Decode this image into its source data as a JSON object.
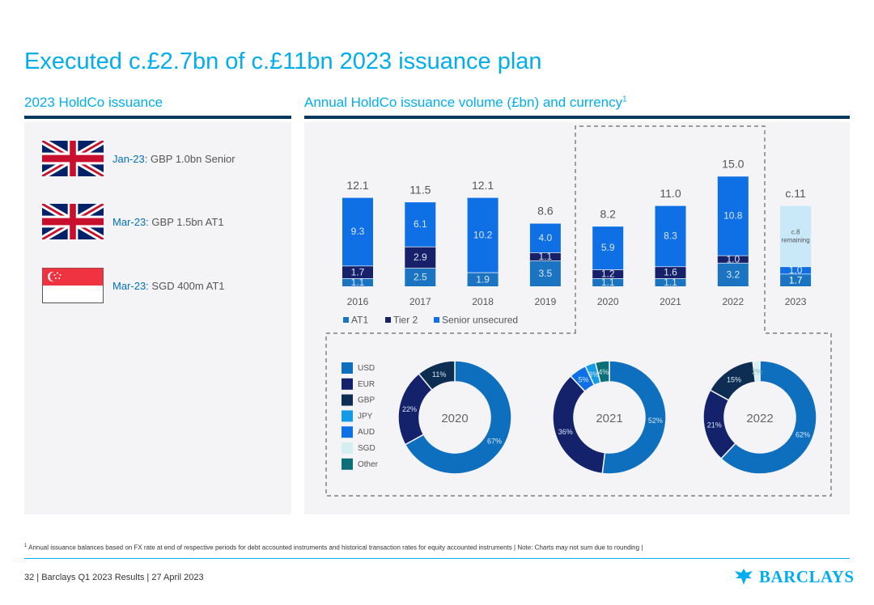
{
  "title": "Executed c.£2.7bn of c.£11bn 2023 issuance plan",
  "left_heading": "2023 HoldCo issuance",
  "right_heading": "Annual HoldCo issuance volume (£bn) and currency",
  "right_heading_sup": "1",
  "issuances": [
    {
      "flag": "uk-flag-icon",
      "date": "Jan-23:",
      "text": "GBP 1.0bn Senior"
    },
    {
      "flag": "uk-flag-icon",
      "date": "Mar-23:",
      "text": "GBP 1.5bn AT1"
    },
    {
      "flag": "singapore-flag-icon",
      "date": "Mar-23:",
      "text": "SGD 400m AT1"
    }
  ],
  "footnote_sup": "1",
  "footnote": "Annual issuance balances based on FX rate at end of respective periods for debt accounted instruments and historical transaction rates for equity accounted instruments | Note: Charts may not sum due to rounding |",
  "footer": "32 | Barclays Q1 2023 Results | 27 April 2023",
  "logo_text": "BARCLAYS",
  "colors": {
    "accent": "#00aeef",
    "navy": "#00395d",
    "at1": "#1a74c2",
    "tier2": "#16216a",
    "senior": "#0f70e6",
    "remaining": "#c9e8f8",
    "usd": "#0f6fbf",
    "eur": "#14216b",
    "gbp": "#0d2e52",
    "jpy": "#159be6",
    "aud": "#0f70e6",
    "sgd": "#d5eef0",
    "other": "#0c6f77"
  },
  "chart_data": [
    {
      "type": "bar",
      "stacked": true,
      "categories": [
        "2016",
        "2017",
        "2018",
        "2019",
        "2020",
        "2021",
        "2022",
        "2023"
      ],
      "series": [
        {
          "name": "AT1",
          "values": [
            1.1,
            2.5,
            1.9,
            3.5,
            1.1,
            1.1,
            3.2,
            1.7
          ]
        },
        {
          "name": "Tier 2",
          "values": [
            1.7,
            2.9,
            null,
            1.1,
            1.2,
            1.6,
            1.0,
            null
          ]
        },
        {
          "name": "Senior unsecured",
          "values": [
            9.3,
            6.1,
            10.2,
            4.0,
            5.9,
            8.3,
            10.8,
            1.0
          ]
        },
        {
          "name": "",
          "values": [
            null,
            null,
            null,
            null,
            null,
            null,
            null,
            8.3
          ]
        }
      ],
      "segment_labels": [
        [
          "1.1",
          "1.7",
          "9.3",
          null
        ],
        [
          "2.5",
          "2.9",
          "6.1",
          null
        ],
        [
          "1.9",
          null,
          "10.2",
          null
        ],
        [
          "3.5",
          "1.1",
          "4.0",
          null
        ],
        [
          "1.1",
          "1.2",
          "5.9",
          null
        ],
        [
          "1.1",
          "1.6",
          "8.3",
          null
        ],
        [
          "3.2",
          "1.0",
          "10.8",
          null
        ],
        [
          "1.7",
          null,
          "1.0",
          "c.8 remaining"
        ]
      ],
      "totals": [
        "12.1",
        "11.5",
        "12.1",
        "8.6",
        "8.2",
        "11.0",
        "15.0",
        "c.11"
      ],
      "legend": [
        "AT1",
        "Tier 2",
        "Senior unsecured"
      ],
      "grid": false
    },
    {
      "type": "pie",
      "donut": true,
      "legend": [
        "USD",
        "EUR",
        "GBP",
        "JPY",
        "AUD",
        "SGD",
        "Other"
      ],
      "charts": [
        {
          "center_label": "2020",
          "slices": [
            {
              "name": "USD",
              "value": 67,
              "label": "67%"
            },
            {
              "name": "EUR",
              "value": 22,
              "label": "22%"
            },
            {
              "name": "GBP",
              "value": 11,
              "label": "11%"
            }
          ]
        },
        {
          "center_label": "2021",
          "slices": [
            {
              "name": "USD",
              "value": 52,
              "label": "52%"
            },
            {
              "name": "EUR",
              "value": 36,
              "label": "36%"
            },
            {
              "name": "AUD",
              "value": 5,
              "label": "5%"
            },
            {
              "name": "JPY",
              "value": 3,
              "label": "3%"
            },
            {
              "name": "Other",
              "value": 4,
              "label": "4%"
            }
          ]
        },
        {
          "center_label": "2022",
          "slices": [
            {
              "name": "USD",
              "value": 62,
              "label": "62%"
            },
            {
              "name": "EUR",
              "value": 21,
              "label": "21%"
            },
            {
              "name": "GBP",
              "value": 15,
              "label": "15%"
            },
            {
              "name": "SGD",
              "value": 2,
              "label": "2%"
            }
          ]
        }
      ]
    }
  ]
}
